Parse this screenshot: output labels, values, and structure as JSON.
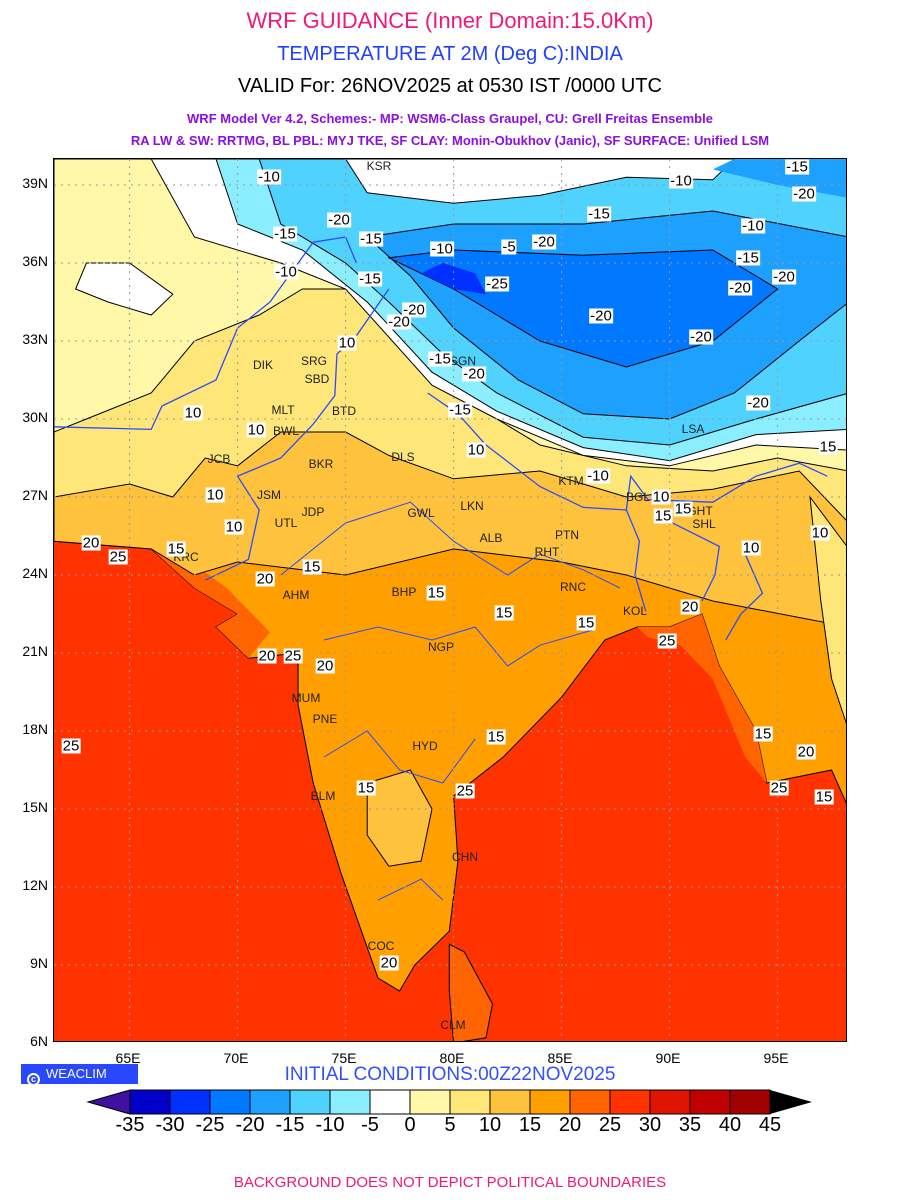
{
  "header": {
    "title": "WRF GUIDANCE (Inner Domain:15.0Km)",
    "variable": "TEMPERATURE AT 2M (Deg C):INDIA",
    "valid": "VALID For: 26NOV2025 at 0530 IST /0000 UTC",
    "model_line1": "WRF Model Ver 4.2, Schemes:- MP: WSM6-Class Graupel, CU: Grell Freitas Ensemble",
    "model_line2": "RA LW & SW: RRTMG, BL PBL: MYJ TKE, SF CLAY: Monin-Obukhov (Janic), SF SURFACE: Unified LSM"
  },
  "map": {
    "lat_ticks": [
      "39N",
      "36N",
      "33N",
      "30N",
      "27N",
      "24N",
      "21N",
      "18N",
      "15N",
      "12N",
      "9N",
      "6N"
    ],
    "lon_ticks": [
      "65E",
      "70E",
      "75E",
      "80E",
      "85E",
      "90E",
      "95E"
    ],
    "cities": [
      "SRG",
      "SBD",
      "DIK",
      "MLT",
      "BWL",
      "BTD",
      "BKR",
      "DLS",
      "JCB",
      "JSM",
      "JDP",
      "UTL",
      "GWL",
      "LKN",
      "ALB",
      "PTN",
      "RHT",
      "RNC",
      "KOL",
      "KTM",
      "BGL",
      "GHT",
      "SHL",
      "NGP",
      "BHP",
      "AHM",
      "KRC",
      "MUM",
      "PNE",
      "HYD",
      "BLM",
      "CHN",
      "COC",
      "CLM",
      "LSA",
      "SGN",
      "KSR"
    ],
    "contour_labels": [
      "-10",
      "-15",
      "-20",
      "-20",
      "-15",
      "-10",
      "-15",
      "-5",
      "-20",
      "-15",
      "-10",
      "-10",
      "-15",
      "-25",
      "-20",
      "-20",
      "-15",
      "-20",
      "-20",
      "-20",
      "-20",
      "-10",
      "-20",
      "-15",
      "-15",
      "-20",
      "10",
      "10",
      "10",
      "10",
      "10",
      "10",
      "-10",
      "10",
      "15",
      "15",
      "15",
      "20",
      "25",
      "20",
      "15",
      "15",
      "15",
      "15",
      "20",
      "25",
      "20",
      "25",
      "20",
      "15",
      "15",
      "20",
      "25",
      "25",
      "15",
      "15",
      "25",
      "20",
      "15",
      "10",
      "10"
    ]
  },
  "watermark": "WEACLIM",
  "initial_conditions": "INITIAL CONDITIONS:00Z22NOV2025",
  "colorbar": {
    "labels": [
      "-35",
      "-30",
      "-25",
      "-20",
      "-15",
      "-10",
      "-5",
      "0",
      "5",
      "10",
      "15",
      "20",
      "25",
      "30",
      "35",
      "40",
      "45"
    ],
    "colors": [
      "#0000c8",
      "#0030ff",
      "#0078ff",
      "#1ea0ff",
      "#50d2ff",
      "#8aeeff",
      "#ffffff",
      "#fff8a8",
      "#ffe678",
      "#ffc23c",
      "#ffa000",
      "#ff6400",
      "#ff3300",
      "#e01400",
      "#c00000",
      "#a00000"
    ],
    "under_color": "#4010a0",
    "over_color": "#000000"
  },
  "footer": "BACKGROUND DOES NOT DEPICT POLITICAL BOUNDARIES"
}
